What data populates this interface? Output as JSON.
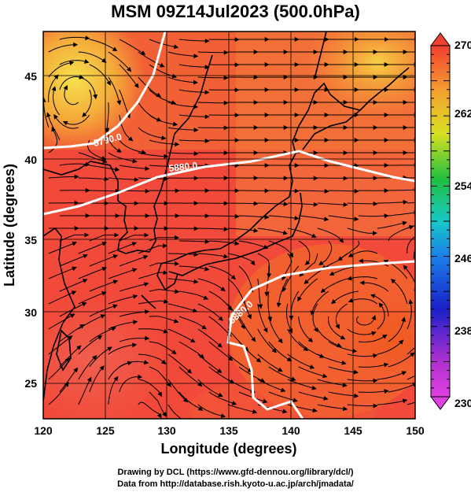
{
  "title": "MSM 09Z14Jul2023 (500.0hPa)",
  "xaxis": {
    "label": "Longitude (degrees)",
    "ticks": [
      "120",
      "125",
      "130",
      "135",
      "140",
      "145",
      "150"
    ]
  },
  "yaxis": {
    "label": "Latitude  (degrees)",
    "ticks": [
      "25",
      "30",
      "35",
      "40",
      "45"
    ]
  },
  "colorbar": {
    "ticks": [
      "230",
      "238",
      "246",
      "254",
      "262",
      "270"
    ]
  },
  "contours": [
    "5790.0",
    "5880.0",
    "5880.0"
  ],
  "credits": {
    "line1": "Drawing by DCL (https://www.gfd-dennou.org/library/dcl/)",
    "line2": "Data from http://database.rish.kyoto-u.ac.jp/arch/jmadata/"
  },
  "colors": {
    "background_main": "#f24a3a",
    "warm_core": "#f7e04a",
    "contour": "#ffffff",
    "coast": "#000000"
  }
}
